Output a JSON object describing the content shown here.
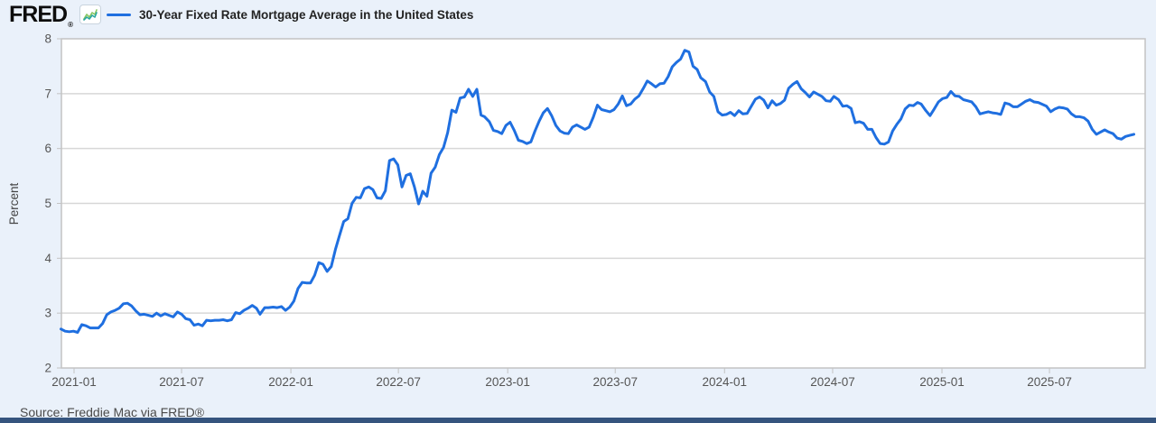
{
  "header": {
    "brand": "FRED",
    "registered_mark": "®",
    "legend_label": "30-Year Fixed Rate Mortgage Average in the United States"
  },
  "footer": {
    "source": "Source: Freddie Mac via FRED®"
  },
  "colors": {
    "background": "#eaf1fa",
    "plot_background": "#ffffff",
    "line": "#1f6fe0",
    "grid": "#d7d7d7",
    "plot_border": "#c3c3c3",
    "tick_text": "#555555",
    "axis_label_text": "#444444",
    "legend_text": "#232323",
    "source_text": "#4a4a4a",
    "bottom_bar": "#35547e",
    "icon_teal": "#2aa6a0",
    "icon_green": "#86c661"
  },
  "chart_data": {
    "type": "line",
    "title": "30-Year Fixed Rate Mortgage Average in the United States",
    "ylabel": "Percent",
    "xlabel": "",
    "units": "Percent",
    "frequency": "weekly",
    "ylim": [
      2,
      8
    ],
    "y_ticks": [
      2,
      3,
      4,
      5,
      6,
      7,
      8
    ],
    "x_ticks": [
      "2021-01",
      "2021-07",
      "2022-01",
      "2022-07",
      "2023-01",
      "2023-07",
      "2024-01",
      "2024-07",
      "2025-01",
      "2025-07"
    ],
    "x_range": [
      "2020-12-10",
      "2025-11-20"
    ],
    "grid": true,
    "legend_position": "top-left",
    "series": [
      {
        "name": "30-Year Fixed Rate Mortgage Average in the United States",
        "points": [
          [
            "2020-12-10",
            2.71
          ],
          [
            "2020-12-17",
            2.67
          ],
          [
            "2020-12-24",
            2.66
          ],
          [
            "2020-12-31",
            2.67
          ],
          [
            "2021-01-07",
            2.65
          ],
          [
            "2021-01-14",
            2.79
          ],
          [
            "2021-01-21",
            2.77
          ],
          [
            "2021-01-28",
            2.73
          ],
          [
            "2021-02-04",
            2.73
          ],
          [
            "2021-02-11",
            2.73
          ],
          [
            "2021-02-18",
            2.81
          ],
          [
            "2021-02-25",
            2.97
          ],
          [
            "2021-03-04",
            3.02
          ],
          [
            "2021-03-11",
            3.05
          ],
          [
            "2021-03-18",
            3.09
          ],
          [
            "2021-03-25",
            3.17
          ],
          [
            "2021-04-01",
            3.18
          ],
          [
            "2021-04-08",
            3.13
          ],
          [
            "2021-04-15",
            3.04
          ],
          [
            "2021-04-22",
            2.97
          ],
          [
            "2021-04-29",
            2.98
          ],
          [
            "2021-05-06",
            2.96
          ],
          [
            "2021-05-13",
            2.94
          ],
          [
            "2021-05-20",
            3.0
          ],
          [
            "2021-05-27",
            2.95
          ],
          [
            "2021-06-03",
            2.99
          ],
          [
            "2021-06-10",
            2.96
          ],
          [
            "2021-06-17",
            2.93
          ],
          [
            "2021-06-24",
            3.02
          ],
          [
            "2021-07-01",
            2.98
          ],
          [
            "2021-07-08",
            2.9
          ],
          [
            "2021-07-15",
            2.88
          ],
          [
            "2021-07-22",
            2.78
          ],
          [
            "2021-07-29",
            2.8
          ],
          [
            "2021-08-05",
            2.77
          ],
          [
            "2021-08-12",
            2.87
          ],
          [
            "2021-08-19",
            2.86
          ],
          [
            "2021-08-26",
            2.87
          ],
          [
            "2021-09-02",
            2.87
          ],
          [
            "2021-09-09",
            2.88
          ],
          [
            "2021-09-16",
            2.86
          ],
          [
            "2021-09-23",
            2.88
          ],
          [
            "2021-09-30",
            3.01
          ],
          [
            "2021-10-07",
            2.99
          ],
          [
            "2021-10-14",
            3.05
          ],
          [
            "2021-10-21",
            3.09
          ],
          [
            "2021-10-28",
            3.14
          ],
          [
            "2021-11-04",
            3.09
          ],
          [
            "2021-11-10",
            2.98
          ],
          [
            "2021-11-18",
            3.1
          ],
          [
            "2021-11-24",
            3.1
          ],
          [
            "2021-12-02",
            3.11
          ],
          [
            "2021-12-09",
            3.1
          ],
          [
            "2021-12-16",
            3.12
          ],
          [
            "2021-12-23",
            3.05
          ],
          [
            "2021-12-30",
            3.11
          ],
          [
            "2022-01-06",
            3.22
          ],
          [
            "2022-01-13",
            3.45
          ],
          [
            "2022-01-20",
            3.56
          ],
          [
            "2022-01-27",
            3.55
          ],
          [
            "2022-02-03",
            3.55
          ],
          [
            "2022-02-10",
            3.69
          ],
          [
            "2022-02-17",
            3.92
          ],
          [
            "2022-02-24",
            3.89
          ],
          [
            "2022-03-03",
            3.76
          ],
          [
            "2022-03-10",
            3.85
          ],
          [
            "2022-03-17",
            4.16
          ],
          [
            "2022-03-24",
            4.42
          ],
          [
            "2022-03-31",
            4.67
          ],
          [
            "2022-04-07",
            4.72
          ],
          [
            "2022-04-14",
            5.0
          ],
          [
            "2022-04-21",
            5.11
          ],
          [
            "2022-04-28",
            5.1
          ],
          [
            "2022-05-05",
            5.27
          ],
          [
            "2022-05-12",
            5.3
          ],
          [
            "2022-05-19",
            5.25
          ],
          [
            "2022-05-26",
            5.1
          ],
          [
            "2022-06-02",
            5.09
          ],
          [
            "2022-06-09",
            5.23
          ],
          [
            "2022-06-16",
            5.78
          ],
          [
            "2022-06-23",
            5.81
          ],
          [
            "2022-06-30",
            5.7
          ],
          [
            "2022-07-07",
            5.3
          ],
          [
            "2022-07-14",
            5.51
          ],
          [
            "2022-07-21",
            5.54
          ],
          [
            "2022-07-28",
            5.3
          ],
          [
            "2022-08-04",
            4.99
          ],
          [
            "2022-08-11",
            5.22
          ],
          [
            "2022-08-18",
            5.13
          ],
          [
            "2022-08-25",
            5.55
          ],
          [
            "2022-09-01",
            5.66
          ],
          [
            "2022-09-08",
            5.89
          ],
          [
            "2022-09-15",
            6.02
          ],
          [
            "2022-09-22",
            6.29
          ],
          [
            "2022-09-29",
            6.7
          ],
          [
            "2022-10-06",
            6.66
          ],
          [
            "2022-10-13",
            6.92
          ],
          [
            "2022-10-20",
            6.94
          ],
          [
            "2022-10-27",
            7.08
          ],
          [
            "2022-11-03",
            6.95
          ],
          [
            "2022-11-10",
            7.08
          ],
          [
            "2022-11-17",
            6.61
          ],
          [
            "2022-11-23",
            6.58
          ],
          [
            "2022-12-01",
            6.49
          ],
          [
            "2022-12-08",
            6.33
          ],
          [
            "2022-12-15",
            6.31
          ],
          [
            "2022-12-22",
            6.27
          ],
          [
            "2022-12-29",
            6.42
          ],
          [
            "2023-01-05",
            6.48
          ],
          [
            "2023-01-12",
            6.33
          ],
          [
            "2023-01-19",
            6.15
          ],
          [
            "2023-01-26",
            6.13
          ],
          [
            "2023-02-02",
            6.09
          ],
          [
            "2023-02-09",
            6.12
          ],
          [
            "2023-02-16",
            6.32
          ],
          [
            "2023-02-23",
            6.5
          ],
          [
            "2023-03-02",
            6.65
          ],
          [
            "2023-03-09",
            6.73
          ],
          [
            "2023-03-16",
            6.6
          ],
          [
            "2023-03-23",
            6.42
          ],
          [
            "2023-03-30",
            6.32
          ],
          [
            "2023-04-06",
            6.28
          ],
          [
            "2023-04-13",
            6.27
          ],
          [
            "2023-04-20",
            6.39
          ],
          [
            "2023-04-27",
            6.43
          ],
          [
            "2023-05-04",
            6.39
          ],
          [
            "2023-05-11",
            6.35
          ],
          [
            "2023-05-18",
            6.39
          ],
          [
            "2023-05-25",
            6.57
          ],
          [
            "2023-06-01",
            6.79
          ],
          [
            "2023-06-08",
            6.71
          ],
          [
            "2023-06-15",
            6.69
          ],
          [
            "2023-06-22",
            6.67
          ],
          [
            "2023-06-29",
            6.71
          ],
          [
            "2023-07-06",
            6.81
          ],
          [
            "2023-07-13",
            6.96
          ],
          [
            "2023-07-20",
            6.78
          ],
          [
            "2023-07-27",
            6.81
          ],
          [
            "2023-08-03",
            6.9
          ],
          [
            "2023-08-10",
            6.96
          ],
          [
            "2023-08-17",
            7.09
          ],
          [
            "2023-08-24",
            7.23
          ],
          [
            "2023-08-31",
            7.18
          ],
          [
            "2023-09-07",
            7.12
          ],
          [
            "2023-09-14",
            7.18
          ],
          [
            "2023-09-21",
            7.19
          ],
          [
            "2023-09-28",
            7.31
          ],
          [
            "2023-10-05",
            7.49
          ],
          [
            "2023-10-12",
            7.57
          ],
          [
            "2023-10-19",
            7.63
          ],
          [
            "2023-10-26",
            7.79
          ],
          [
            "2023-11-02",
            7.76
          ],
          [
            "2023-11-09",
            7.5
          ],
          [
            "2023-11-16",
            7.44
          ],
          [
            "2023-11-22",
            7.29
          ],
          [
            "2023-11-30",
            7.22
          ],
          [
            "2023-12-07",
            7.03
          ],
          [
            "2023-12-14",
            6.95
          ],
          [
            "2023-12-21",
            6.67
          ],
          [
            "2023-12-28",
            6.61
          ],
          [
            "2024-01-04",
            6.62
          ],
          [
            "2024-01-11",
            6.66
          ],
          [
            "2024-01-18",
            6.6
          ],
          [
            "2024-01-25",
            6.69
          ],
          [
            "2024-02-01",
            6.63
          ],
          [
            "2024-02-08",
            6.64
          ],
          [
            "2024-02-15",
            6.77
          ],
          [
            "2024-02-22",
            6.9
          ],
          [
            "2024-02-29",
            6.94
          ],
          [
            "2024-03-07",
            6.88
          ],
          [
            "2024-03-14",
            6.74
          ],
          [
            "2024-03-21",
            6.87
          ],
          [
            "2024-03-28",
            6.79
          ],
          [
            "2024-04-04",
            6.82
          ],
          [
            "2024-04-11",
            6.88
          ],
          [
            "2024-04-18",
            7.1
          ],
          [
            "2024-04-25",
            7.17
          ],
          [
            "2024-05-02",
            7.22
          ],
          [
            "2024-05-09",
            7.09
          ],
          [
            "2024-05-16",
            7.02
          ],
          [
            "2024-05-23",
            6.94
          ],
          [
            "2024-05-30",
            7.03
          ],
          [
            "2024-06-06",
            6.99
          ],
          [
            "2024-06-13",
            6.95
          ],
          [
            "2024-06-20",
            6.87
          ],
          [
            "2024-06-27",
            6.86
          ],
          [
            "2024-07-03",
            6.95
          ],
          [
            "2024-07-11",
            6.89
          ],
          [
            "2024-07-18",
            6.77
          ],
          [
            "2024-07-25",
            6.78
          ],
          [
            "2024-08-01",
            6.73
          ],
          [
            "2024-08-08",
            6.47
          ],
          [
            "2024-08-15",
            6.49
          ],
          [
            "2024-08-22",
            6.46
          ],
          [
            "2024-08-29",
            6.35
          ],
          [
            "2024-09-05",
            6.35
          ],
          [
            "2024-09-12",
            6.2
          ],
          [
            "2024-09-19",
            6.09
          ],
          [
            "2024-09-26",
            6.08
          ],
          [
            "2024-10-03",
            6.12
          ],
          [
            "2024-10-10",
            6.32
          ],
          [
            "2024-10-17",
            6.44
          ],
          [
            "2024-10-24",
            6.54
          ],
          [
            "2024-10-31",
            6.72
          ],
          [
            "2024-11-07",
            6.79
          ],
          [
            "2024-11-14",
            6.78
          ],
          [
            "2024-11-21",
            6.84
          ],
          [
            "2024-11-27",
            6.81
          ],
          [
            "2024-12-05",
            6.69
          ],
          [
            "2024-12-12",
            6.6
          ],
          [
            "2024-12-19",
            6.72
          ],
          [
            "2024-12-26",
            6.85
          ],
          [
            "2025-01-02",
            6.91
          ],
          [
            "2025-01-09",
            6.93
          ],
          [
            "2025-01-16",
            7.04
          ],
          [
            "2025-01-23",
            6.96
          ],
          [
            "2025-01-30",
            6.95
          ],
          [
            "2025-02-06",
            6.89
          ],
          [
            "2025-02-13",
            6.87
          ],
          [
            "2025-02-20",
            6.85
          ],
          [
            "2025-02-27",
            6.76
          ],
          [
            "2025-03-06",
            6.63
          ],
          [
            "2025-03-13",
            6.65
          ],
          [
            "2025-03-20",
            6.67
          ],
          [
            "2025-03-27",
            6.65
          ],
          [
            "2025-04-03",
            6.64
          ],
          [
            "2025-04-10",
            6.62
          ],
          [
            "2025-04-17",
            6.83
          ],
          [
            "2025-04-24",
            6.81
          ],
          [
            "2025-05-01",
            6.76
          ],
          [
            "2025-05-08",
            6.76
          ],
          [
            "2025-05-15",
            6.81
          ],
          [
            "2025-05-22",
            6.86
          ],
          [
            "2025-05-29",
            6.89
          ],
          [
            "2025-06-05",
            6.85
          ],
          [
            "2025-06-12",
            6.84
          ],
          [
            "2025-06-18",
            6.81
          ],
          [
            "2025-06-26",
            6.77
          ],
          [
            "2025-07-03",
            6.67
          ],
          [
            "2025-07-10",
            6.72
          ],
          [
            "2025-07-17",
            6.75
          ],
          [
            "2025-07-24",
            6.74
          ],
          [
            "2025-07-31",
            6.72
          ],
          [
            "2025-08-07",
            6.63
          ],
          [
            "2025-08-14",
            6.58
          ],
          [
            "2025-08-21",
            6.58
          ],
          [
            "2025-08-28",
            6.56
          ],
          [
            "2025-09-04",
            6.5
          ],
          [
            "2025-09-11",
            6.35
          ],
          [
            "2025-09-18",
            6.26
          ],
          [
            "2025-09-25",
            6.3
          ],
          [
            "2025-10-02",
            6.34
          ],
          [
            "2025-10-09",
            6.3
          ],
          [
            "2025-10-16",
            6.27
          ],
          [
            "2025-10-23",
            6.19
          ],
          [
            "2025-10-30",
            6.17
          ],
          [
            "2025-11-06",
            6.22
          ],
          [
            "2025-11-13",
            6.24
          ],
          [
            "2025-11-20",
            6.26
          ]
        ]
      }
    ]
  }
}
